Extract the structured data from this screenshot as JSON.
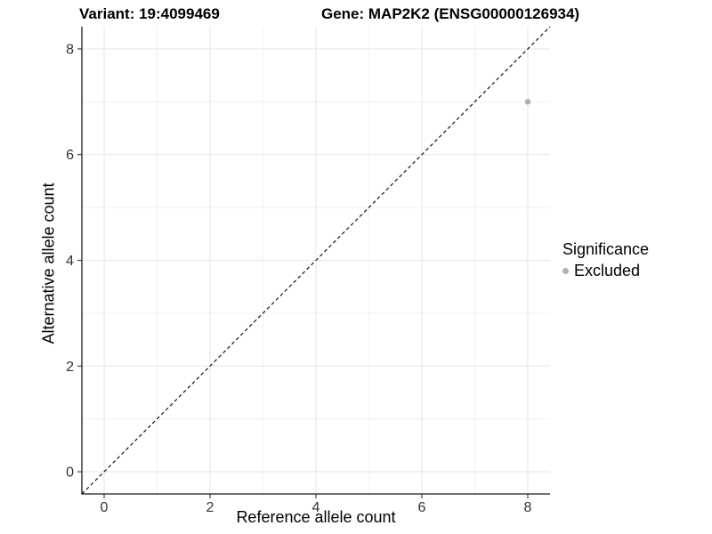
{
  "header": {
    "variant_title": "Variant: 19:4099469",
    "gene_title": "Gene: MAP2K2 (ENSG00000126934)"
  },
  "chart_data": {
    "type": "scatter",
    "xlabel": "Reference allele count",
    "ylabel": "Alternative allele count",
    "xlim": [
      -0.42,
      8.42
    ],
    "ylim": [
      -0.42,
      8.42
    ],
    "x_ticks": [
      0,
      2,
      4,
      6,
      8
    ],
    "y_ticks": [
      0,
      2,
      4,
      6,
      8
    ],
    "grid": {
      "major": true,
      "minor": true
    },
    "points": [
      {
        "x": 8,
        "y": 7,
        "significance": "Excluded"
      }
    ],
    "identity_line": {
      "slope": 1,
      "intercept": 0,
      "style": "dashed"
    },
    "legend": {
      "position": "right",
      "title": "Significance",
      "entries": [
        {
          "label": "Excluded",
          "color": "#b0b0b0"
        }
      ]
    },
    "colors": {
      "point": "#b0b0b0",
      "grid_major": "#e6e6e6",
      "grid_minor": "#f2f2f2",
      "axis_line": "#1a1a1a",
      "tick_mark": "#333333",
      "tick_label": "#333333",
      "identity_line": "#000000"
    }
  }
}
